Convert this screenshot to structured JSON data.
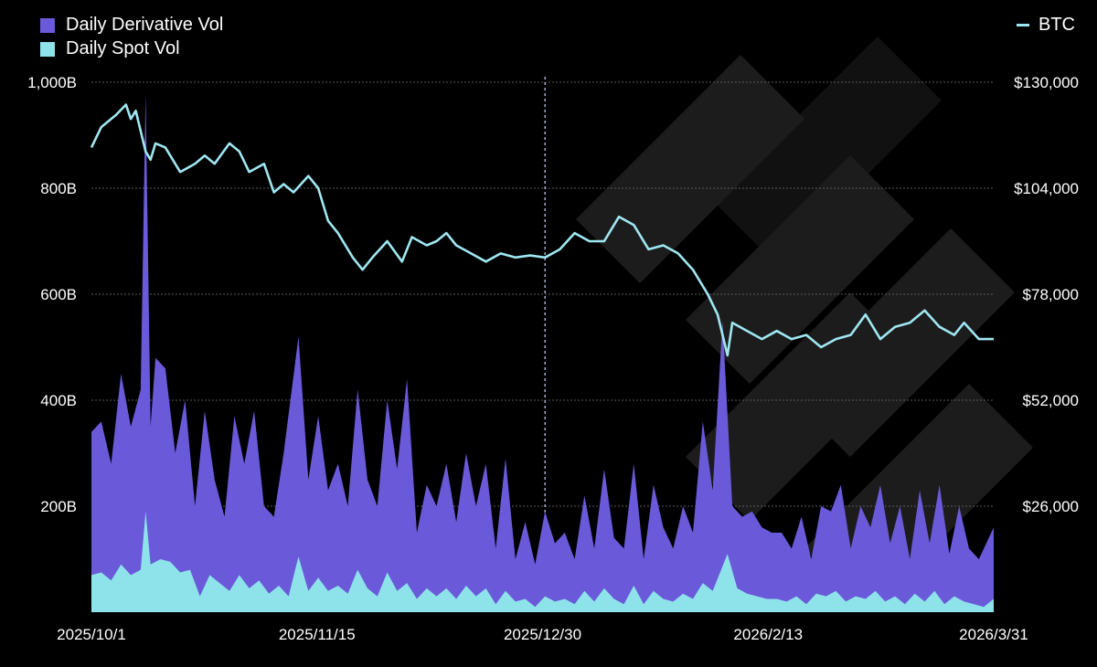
{
  "legend": {
    "derivative": "Daily Derivative Vol",
    "spot": "Daily Spot Vol",
    "btc": "BTC"
  },
  "colors": {
    "derivative": "#6a5ad9",
    "spot": "#8ee3ea",
    "btc": "#9fe7f2",
    "grid": "#5a5a5a",
    "background": "#000000"
  },
  "chart_data": {
    "type": "area",
    "x_tick_labels": [
      "2025/10/1",
      "2025/11/15",
      "2025/12/30",
      "2026/2/13",
      "2026/3/31"
    ],
    "left_axis": {
      "ticks": [
        "1,000B",
        "800B",
        "600B",
        "400B",
        "200B"
      ],
      "ylim": [
        0,
        1000
      ],
      "unit": "B"
    },
    "right_axis": {
      "ticks": [
        "$130,000",
        "$104,000",
        "$78,000",
        "$52,000",
        "$26,000"
      ],
      "ylim": [
        0,
        130000
      ]
    },
    "x_range": [
      "2025-09-29",
      "2026-03-31"
    ],
    "marker_date": "2025-12-30",
    "series": [
      {
        "name": "Daily Derivative Vol",
        "axis": "left",
        "anchors": [
          [
            "2025-09-29",
            340
          ],
          [
            "2025-10-01",
            360
          ],
          [
            "2025-10-03",
            280
          ],
          [
            "2025-10-05",
            450
          ],
          [
            "2025-10-07",
            350
          ],
          [
            "2025-10-09",
            420
          ],
          [
            "2025-10-10",
            980
          ],
          [
            "2025-10-11",
            350
          ],
          [
            "2025-10-12",
            480
          ],
          [
            "2025-10-14",
            460
          ],
          [
            "2025-10-16",
            300
          ],
          [
            "2025-10-18",
            400
          ],
          [
            "2025-10-20",
            200
          ],
          [
            "2025-10-22",
            380
          ],
          [
            "2025-10-24",
            250
          ],
          [
            "2025-10-26",
            180
          ],
          [
            "2025-10-28",
            370
          ],
          [
            "2025-10-30",
            280
          ],
          [
            "2025-11-01",
            380
          ],
          [
            "2025-11-03",
            200
          ],
          [
            "2025-11-05",
            180
          ],
          [
            "2025-11-07",
            300
          ],
          [
            "2025-11-10",
            520
          ],
          [
            "2025-11-12",
            250
          ],
          [
            "2025-11-14",
            370
          ],
          [
            "2025-11-16",
            230
          ],
          [
            "2025-11-18",
            280
          ],
          [
            "2025-11-20",
            200
          ],
          [
            "2025-11-22",
            420
          ],
          [
            "2025-11-24",
            250
          ],
          [
            "2025-11-26",
            200
          ],
          [
            "2025-11-28",
            400
          ],
          [
            "2025-11-30",
            270
          ],
          [
            "2025-12-02",
            440
          ],
          [
            "2025-12-04",
            150
          ],
          [
            "2025-12-06",
            240
          ],
          [
            "2025-12-08",
            200
          ],
          [
            "2025-12-10",
            280
          ],
          [
            "2025-12-12",
            170
          ],
          [
            "2025-12-14",
            300
          ],
          [
            "2025-12-16",
            200
          ],
          [
            "2025-12-18",
            280
          ],
          [
            "2025-12-20",
            120
          ],
          [
            "2025-12-22",
            290
          ],
          [
            "2025-12-24",
            100
          ],
          [
            "2025-12-26",
            170
          ],
          [
            "2025-12-28",
            90
          ],
          [
            "2025-12-30",
            190
          ],
          [
            "2026-01-01",
            130
          ],
          [
            "2026-01-03",
            150
          ],
          [
            "2026-01-05",
            100
          ],
          [
            "2026-01-07",
            220
          ],
          [
            "2026-01-09",
            120
          ],
          [
            "2026-01-11",
            270
          ],
          [
            "2026-01-13",
            140
          ],
          [
            "2026-01-15",
            120
          ],
          [
            "2026-01-17",
            280
          ],
          [
            "2026-01-19",
            100
          ],
          [
            "2026-01-21",
            240
          ],
          [
            "2026-01-23",
            160
          ],
          [
            "2026-01-25",
            120
          ],
          [
            "2026-01-27",
            200
          ],
          [
            "2026-01-29",
            150
          ],
          [
            "2026-01-31",
            360
          ],
          [
            "2026-02-02",
            230
          ],
          [
            "2026-02-04",
            550
          ],
          [
            "2026-02-06",
            200
          ],
          [
            "2026-02-08",
            180
          ],
          [
            "2026-02-10",
            190
          ],
          [
            "2026-02-12",
            160
          ],
          [
            "2026-02-14",
            150
          ],
          [
            "2026-02-16",
            150
          ],
          [
            "2026-02-18",
            120
          ],
          [
            "2026-02-20",
            180
          ],
          [
            "2026-02-22",
            100
          ],
          [
            "2026-02-24",
            200
          ],
          [
            "2026-02-26",
            190
          ],
          [
            "2026-02-28",
            240
          ],
          [
            "2026-03-02",
            120
          ],
          [
            "2026-03-04",
            200
          ],
          [
            "2026-03-06",
            160
          ],
          [
            "2026-03-08",
            240
          ],
          [
            "2026-03-10",
            130
          ],
          [
            "2026-03-12",
            200
          ],
          [
            "2026-03-14",
            100
          ],
          [
            "2026-03-16",
            230
          ],
          [
            "2026-03-18",
            130
          ],
          [
            "2026-03-20",
            240
          ],
          [
            "2026-03-22",
            110
          ],
          [
            "2026-03-24",
            200
          ],
          [
            "2026-03-26",
            120
          ],
          [
            "2026-03-28",
            100
          ],
          [
            "2026-03-31",
            160
          ]
        ]
      },
      {
        "name": "Daily Spot Vol",
        "axis": "left",
        "anchors": [
          [
            "2025-09-29",
            70
          ],
          [
            "2025-10-01",
            75
          ],
          [
            "2025-10-03",
            60
          ],
          [
            "2025-10-05",
            90
          ],
          [
            "2025-10-07",
            70
          ],
          [
            "2025-10-09",
            80
          ],
          [
            "2025-10-10",
            190
          ],
          [
            "2025-10-11",
            90
          ],
          [
            "2025-10-13",
            100
          ],
          [
            "2025-10-15",
            95
          ],
          [
            "2025-10-17",
            75
          ],
          [
            "2025-10-19",
            80
          ],
          [
            "2025-10-21",
            30
          ],
          [
            "2025-10-23",
            70
          ],
          [
            "2025-10-25",
            55
          ],
          [
            "2025-10-27",
            40
          ],
          [
            "2025-10-29",
            70
          ],
          [
            "2025-10-31",
            45
          ],
          [
            "2025-11-02",
            60
          ],
          [
            "2025-11-04",
            35
          ],
          [
            "2025-11-06",
            50
          ],
          [
            "2025-11-08",
            30
          ],
          [
            "2025-11-10",
            105
          ],
          [
            "2025-11-12",
            40
          ],
          [
            "2025-11-14",
            65
          ],
          [
            "2025-11-16",
            40
          ],
          [
            "2025-11-18",
            50
          ],
          [
            "2025-11-20",
            35
          ],
          [
            "2025-11-22",
            80
          ],
          [
            "2025-11-24",
            45
          ],
          [
            "2025-11-26",
            30
          ],
          [
            "2025-11-28",
            75
          ],
          [
            "2025-11-30",
            40
          ],
          [
            "2025-12-02",
            55
          ],
          [
            "2025-12-04",
            25
          ],
          [
            "2025-12-06",
            45
          ],
          [
            "2025-12-08",
            30
          ],
          [
            "2025-12-10",
            45
          ],
          [
            "2025-12-12",
            25
          ],
          [
            "2025-12-14",
            50
          ],
          [
            "2025-12-16",
            30
          ],
          [
            "2025-12-18",
            45
          ],
          [
            "2025-12-20",
            15
          ],
          [
            "2025-12-22",
            40
          ],
          [
            "2025-12-24",
            20
          ],
          [
            "2025-12-26",
            25
          ],
          [
            "2025-12-28",
            10
          ],
          [
            "2025-12-30",
            30
          ],
          [
            "2026-01-01",
            20
          ],
          [
            "2026-01-03",
            25
          ],
          [
            "2026-01-05",
            15
          ],
          [
            "2026-01-07",
            40
          ],
          [
            "2026-01-09",
            20
          ],
          [
            "2026-01-11",
            45
          ],
          [
            "2026-01-13",
            25
          ],
          [
            "2026-01-15",
            15
          ],
          [
            "2026-01-17",
            50
          ],
          [
            "2026-01-19",
            15
          ],
          [
            "2026-01-21",
            40
          ],
          [
            "2026-01-23",
            25
          ],
          [
            "2026-01-25",
            20
          ],
          [
            "2026-01-27",
            35
          ],
          [
            "2026-01-29",
            25
          ],
          [
            "2026-01-31",
            55
          ],
          [
            "2026-02-02",
            40
          ],
          [
            "2026-02-05",
            110
          ],
          [
            "2026-02-07",
            45
          ],
          [
            "2026-02-09",
            35
          ],
          [
            "2026-02-11",
            30
          ],
          [
            "2026-02-13",
            25
          ],
          [
            "2026-02-15",
            25
          ],
          [
            "2026-02-17",
            20
          ],
          [
            "2026-02-19",
            30
          ],
          [
            "2026-02-21",
            15
          ],
          [
            "2026-02-23",
            35
          ],
          [
            "2026-02-25",
            30
          ],
          [
            "2026-02-27",
            40
          ],
          [
            "2026-03-01",
            20
          ],
          [
            "2026-03-03",
            30
          ],
          [
            "2026-03-05",
            25
          ],
          [
            "2026-03-07",
            40
          ],
          [
            "2026-03-09",
            20
          ],
          [
            "2026-03-11",
            30
          ],
          [
            "2026-03-13",
            15
          ],
          [
            "2026-03-15",
            35
          ],
          [
            "2026-03-17",
            20
          ],
          [
            "2026-03-19",
            40
          ],
          [
            "2026-03-21",
            15
          ],
          [
            "2026-03-23",
            30
          ],
          [
            "2026-03-25",
            20
          ],
          [
            "2026-03-27",
            15
          ],
          [
            "2026-03-29",
            10
          ],
          [
            "2026-03-31",
            25
          ]
        ]
      },
      {
        "name": "BTC",
        "axis": "right",
        "anchors": [
          [
            "2025-09-29",
            114000
          ],
          [
            "2025-10-01",
            119000
          ],
          [
            "2025-10-04",
            122000
          ],
          [
            "2025-10-06",
            124500
          ],
          [
            "2025-10-07",
            121000
          ],
          [
            "2025-10-08",
            123000
          ],
          [
            "2025-10-10",
            113000
          ],
          [
            "2025-10-11",
            111000
          ],
          [
            "2025-10-12",
            115000
          ],
          [
            "2025-10-14",
            114000
          ],
          [
            "2025-10-17",
            108000
          ],
          [
            "2025-10-20",
            110000
          ],
          [
            "2025-10-22",
            112000
          ],
          [
            "2025-10-24",
            110000
          ],
          [
            "2025-10-27",
            115000
          ],
          [
            "2025-10-29",
            113000
          ],
          [
            "2025-10-31",
            108000
          ],
          [
            "2025-11-03",
            110000
          ],
          [
            "2025-11-05",
            103000
          ],
          [
            "2025-11-07",
            105000
          ],
          [
            "2025-11-09",
            103000
          ],
          [
            "2025-11-12",
            107000
          ],
          [
            "2025-11-14",
            104000
          ],
          [
            "2025-11-16",
            96000
          ],
          [
            "2025-11-18",
            93000
          ],
          [
            "2025-11-21",
            87000
          ],
          [
            "2025-11-23",
            84000
          ],
          [
            "2025-11-25",
            87000
          ],
          [
            "2025-11-28",
            91000
          ],
          [
            "2025-12-01",
            86000
          ],
          [
            "2025-12-03",
            92000
          ],
          [
            "2025-12-06",
            90000
          ],
          [
            "2025-12-08",
            91000
          ],
          [
            "2025-12-10",
            93000
          ],
          [
            "2025-12-12",
            90000
          ],
          [
            "2025-12-15",
            88000
          ],
          [
            "2025-12-18",
            86000
          ],
          [
            "2025-12-21",
            88000
          ],
          [
            "2025-12-24",
            87000
          ],
          [
            "2025-12-27",
            87500
          ],
          [
            "2025-12-30",
            87000
          ],
          [
            "2026-01-02",
            89000
          ],
          [
            "2026-01-05",
            93000
          ],
          [
            "2026-01-08",
            91000
          ],
          [
            "2026-01-11",
            91000
          ],
          [
            "2026-01-14",
            97000
          ],
          [
            "2026-01-17",
            95000
          ],
          [
            "2026-01-20",
            89000
          ],
          [
            "2026-01-23",
            90000
          ],
          [
            "2026-01-26",
            88000
          ],
          [
            "2026-01-29",
            84000
          ],
          [
            "2026-02-01",
            78000
          ],
          [
            "2026-02-03",
            73000
          ],
          [
            "2026-02-05",
            63000
          ],
          [
            "2026-02-06",
            71000
          ],
          [
            "2026-02-09",
            69000
          ],
          [
            "2026-02-12",
            67000
          ],
          [
            "2026-02-15",
            69000
          ],
          [
            "2026-02-18",
            67000
          ],
          [
            "2026-02-21",
            68000
          ],
          [
            "2026-02-24",
            65000
          ],
          [
            "2026-02-27",
            67000
          ],
          [
            "2026-03-02",
            68000
          ],
          [
            "2026-03-05",
            73000
          ],
          [
            "2026-03-08",
            67000
          ],
          [
            "2026-03-11",
            70000
          ],
          [
            "2026-03-14",
            71000
          ],
          [
            "2026-03-17",
            74000
          ],
          [
            "2026-03-20",
            70000
          ],
          [
            "2026-03-23",
            68000
          ],
          [
            "2026-03-25",
            71000
          ],
          [
            "2026-03-28",
            67000
          ],
          [
            "2026-03-31",
            67000
          ]
        ]
      }
    ]
  }
}
